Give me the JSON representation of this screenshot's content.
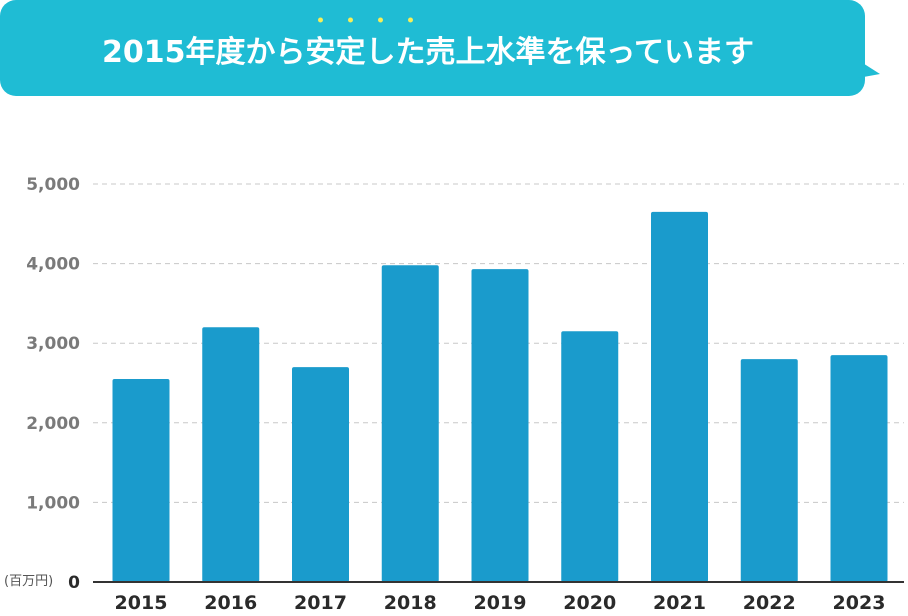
{
  "title": {
    "text": "2015年度から安定した売上水準を保っています",
    "emphasis_chars": "安定した",
    "emphasis_dot_color": "#f4ef5a"
  },
  "colors": {
    "banner": "#1fbcd4",
    "bar": "#1a9bcc",
    "grid": "#c8c8c8",
    "baseline": "#333333"
  },
  "chart_data": {
    "type": "bar",
    "categories": [
      "2015",
      "2016",
      "2017",
      "2018",
      "2019",
      "2020",
      "2021",
      "2022",
      "2023"
    ],
    "values": [
      2550,
      3200,
      2700,
      3980,
      3930,
      3150,
      4650,
      2800,
      2850
    ],
    "ylabel": "(百万円)",
    "ylim": [
      0,
      5000
    ],
    "yticks": [
      0,
      1000,
      2000,
      3000,
      4000,
      5000
    ],
    "ytick_labels": [
      "0",
      "1,000",
      "2,000",
      "3,000",
      "4,000",
      "5,000"
    ],
    "grid": true,
    "grid_style": "dashed"
  }
}
